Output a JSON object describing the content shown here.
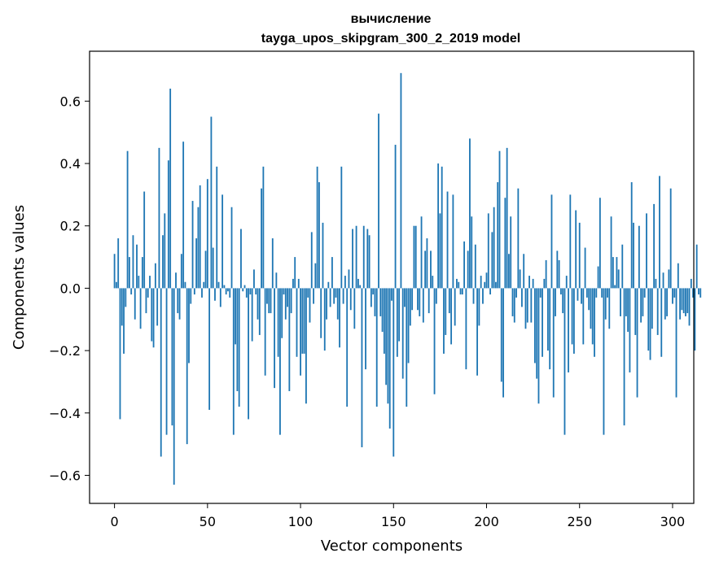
{
  "chart_data": {
    "type": "bar",
    "title": "вычисление",
    "subtitle": "tayga_upos_skipgram_300_2_2019 model",
    "xlabel": "Vector components",
    "ylabel": "Components values",
    "xlim": [
      -13.4,
      311.4
    ],
    "ylim": [
      -0.69,
      0.76
    ],
    "xticks": [
      0,
      50,
      100,
      150,
      200,
      250,
      300
    ],
    "xtick_labels": [
      "0",
      "50",
      "100",
      "150",
      "200",
      "250",
      "300"
    ],
    "yticks": [
      -0.6,
      -0.4,
      -0.2,
      0.0,
      0.2,
      0.4,
      0.6
    ],
    "ytick_labels": [
      "−0.6",
      "−0.4",
      "−0.2",
      "0.0",
      "0.2",
      "0.4",
      "0.6"
    ],
    "bar_color": "#1f77b4",
    "grid": false,
    "legend": "none",
    "values": [
      0.11,
      0.02,
      0.16,
      -0.42,
      -0.12,
      -0.21,
      -0.06,
      0.44,
      0.1,
      -0.02,
      0.17,
      -0.1,
      0.14,
      0.04,
      -0.13,
      0.1,
      0.31,
      -0.08,
      -0.03,
      0.04,
      -0.17,
      -0.19,
      0.08,
      -0.12,
      0.45,
      -0.54,
      0.17,
      0.24,
      -0.47,
      0.41,
      0.64,
      -0.44,
      -0.63,
      0.05,
      -0.08,
      -0.1,
      0.11,
      0.47,
      0.02,
      -0.5,
      -0.24,
      -0.05,
      0.28,
      -0.02,
      0.16,
      0.26,
      0.33,
      -0.03,
      0.02,
      0.12,
      0.35,
      -0.39,
      0.55,
      0.13,
      -0.04,
      0.39,
      0.02,
      -0.06,
      0.3,
      0.01,
      -0.02,
      -0.01,
      -0.03,
      0.26,
      -0.47,
      -0.18,
      -0.33,
      -0.38,
      0.19,
      -0.01,
      0.01,
      -0.03,
      -0.42,
      -0.02,
      -0.17,
      0.06,
      -0.02,
      -0.1,
      -0.15,
      0.32,
      0.39,
      -0.28,
      -0.05,
      -0.08,
      -0.08,
      0.16,
      -0.32,
      0.05,
      -0.22,
      -0.47,
      -0.16,
      -0.02,
      -0.1,
      -0.06,
      -0.33,
      -0.08,
      0.03,
      0.1,
      -0.22,
      0.03,
      -0.28,
      -0.21,
      -0.21,
      -0.37,
      -0.03,
      -0.11,
      0.18,
      -0.05,
      0.08,
      0.39,
      0.34,
      -0.16,
      0.21,
      -0.2,
      -0.1,
      0.02,
      -0.06,
      0.1,
      -0.05,
      -0.03,
      -0.1,
      -0.19,
      0.39,
      -0.05,
      0.04,
      -0.38,
      0.06,
      -0.07,
      0.19,
      -0.13,
      0.2,
      0.03,
      0.01,
      -0.51,
      0.2,
      -0.26,
      0.19,
      0.17,
      -0.06,
      -0.02,
      -0.09,
      -0.38,
      0.56,
      -0.09,
      -0.14,
      -0.21,
      -0.31,
      -0.37,
      -0.45,
      -0.04,
      -0.54,
      0.46,
      -0.22,
      -0.17,
      0.69,
      -0.29,
      -0.06,
      -0.38,
      -0.24,
      -0.12,
      -0.07,
      0.2,
      0.2,
      -0.07,
      -0.09,
      0.23,
      -0.11,
      0.12,
      0.16,
      -0.08,
      0.12,
      0.04,
      -0.34,
      -0.05,
      0.4,
      0.24,
      0.39,
      -0.21,
      -0.15,
      0.31,
      -0.08,
      -0.18,
      0.3,
      -0.12,
      0.03,
      0.02,
      -0.02,
      -0.02,
      0.15,
      -0.26,
      0.12,
      0.48,
      0.23,
      -0.05,
      0.14,
      -0.28,
      -0.12,
      0.04,
      -0.05,
      0.02,
      0.05,
      0.24,
      -0.02,
      0.18,
      0.26,
      0.02,
      0.34,
      0.44,
      -0.3,
      -0.35,
      0.29,
      0.45,
      0.11,
      0.23,
      -0.09,
      -0.11,
      -0.03,
      0.32,
      0.06,
      -0.06,
      0.11,
      -0.13,
      -0.11,
      0.04,
      -0.11,
      0.03,
      -0.24,
      -0.29,
      -0.37,
      -0.03,
      -0.22,
      0.03,
      0.09,
      -0.2,
      -0.26,
      0.3,
      -0.35,
      -0.09,
      0.12,
      0.09,
      -0.02,
      -0.08,
      -0.47,
      0.04,
      -0.27,
      0.3,
      -0.18,
      -0.21,
      0.25,
      -0.04,
      0.21,
      -0.05,
      -0.18,
      0.13,
      -0.03,
      -0.07,
      -0.13,
      -0.18,
      -0.22,
      -0.03,
      0.07,
      0.29,
      -0.03,
      -0.47,
      -0.1,
      -0.03,
      -0.13,
      0.23,
      0.1,
      0.01,
      0.1,
      0.06,
      -0.09,
      0.14,
      -0.44,
      -0.09,
      -0.14,
      -0.27,
      0.34,
      0.21,
      -0.15,
      -0.35,
      0.2,
      -0.11,
      -0.09,
      -0.03,
      0.24,
      -0.2,
      -0.23,
      -0.13,
      0.27,
      0.03,
      -0.15,
      0.36,
      -0.22,
      0.05,
      -0.1,
      -0.09,
      0.06,
      0.32,
      -0.05,
      -0.03,
      -0.35,
      0.08,
      -0.1,
      -0.07,
      -0.08,
      -0.09,
      -0.08,
      -0.12,
      0.03,
      -0.03,
      -0.2,
      0.14,
      -0.02,
      -0.03
    ]
  }
}
